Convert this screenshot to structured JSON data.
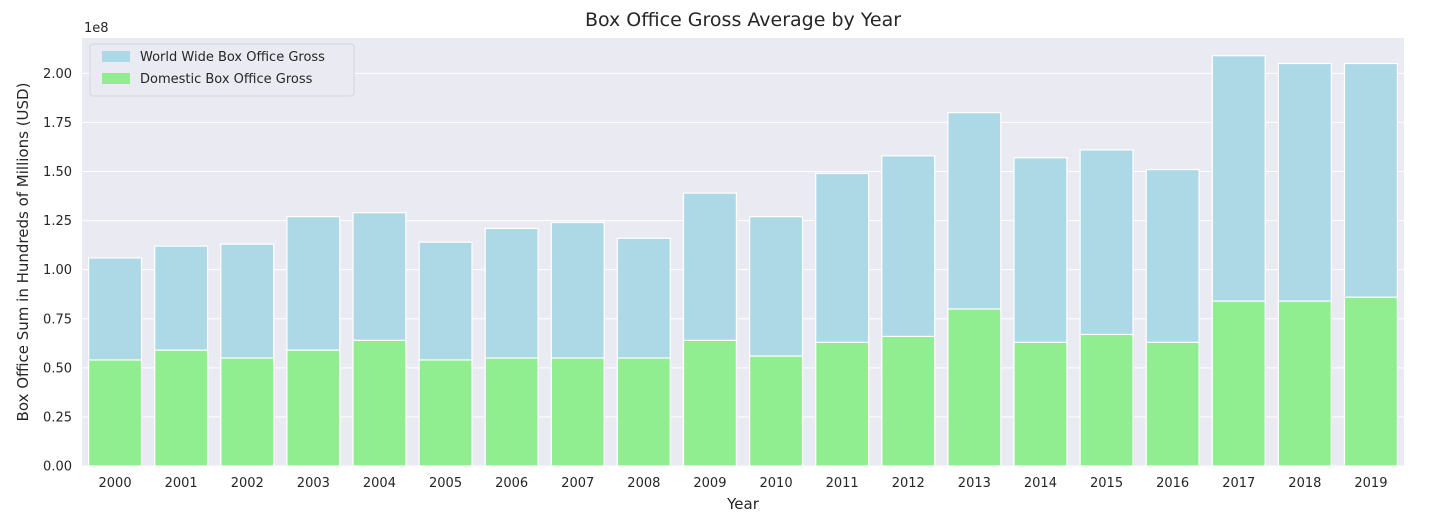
{
  "chart_data": {
    "type": "bar",
    "title": "Box Office Gross Average by Year",
    "xlabel": "Year",
    "ylabel": "Box Office Sum in Hundreds of Millions (USD)",
    "y_offset_text": "1e8",
    "ylim": [
      0,
      2.18
    ],
    "yticks": [
      "0.00",
      "0.25",
      "0.50",
      "0.75",
      "1.00",
      "1.25",
      "1.50",
      "1.75",
      "2.00"
    ],
    "ytick_values": [
      0,
      0.25,
      0.5,
      0.75,
      1.0,
      1.25,
      1.5,
      1.75,
      2.0
    ],
    "categories": [
      "2000",
      "2001",
      "2002",
      "2003",
      "2004",
      "2005",
      "2006",
      "2007",
      "2008",
      "2009",
      "2010",
      "2011",
      "2012",
      "2013",
      "2014",
      "2015",
      "2016",
      "2017",
      "2018",
      "2019"
    ],
    "series": [
      {
        "name": "World Wide Box Office Gross",
        "color": "#add8e6",
        "values": [
          1.06,
          1.12,
          1.13,
          1.27,
          1.29,
          1.14,
          1.21,
          1.24,
          1.16,
          1.39,
          1.27,
          1.49,
          1.58,
          1.8,
          1.57,
          1.61,
          1.51,
          2.09,
          2.05,
          2.05
        ]
      },
      {
        "name": "Domestic Box Office Gross",
        "color": "#90ee90",
        "values": [
          0.54,
          0.59,
          0.55,
          0.59,
          0.64,
          0.54,
          0.55,
          0.55,
          0.55,
          0.64,
          0.56,
          0.63,
          0.66,
          0.8,
          0.63,
          0.67,
          0.63,
          0.84,
          0.84,
          0.86
        ]
      }
    ],
    "legend_position": "top-left",
    "grid": true,
    "background": "#eaeaf2"
  }
}
